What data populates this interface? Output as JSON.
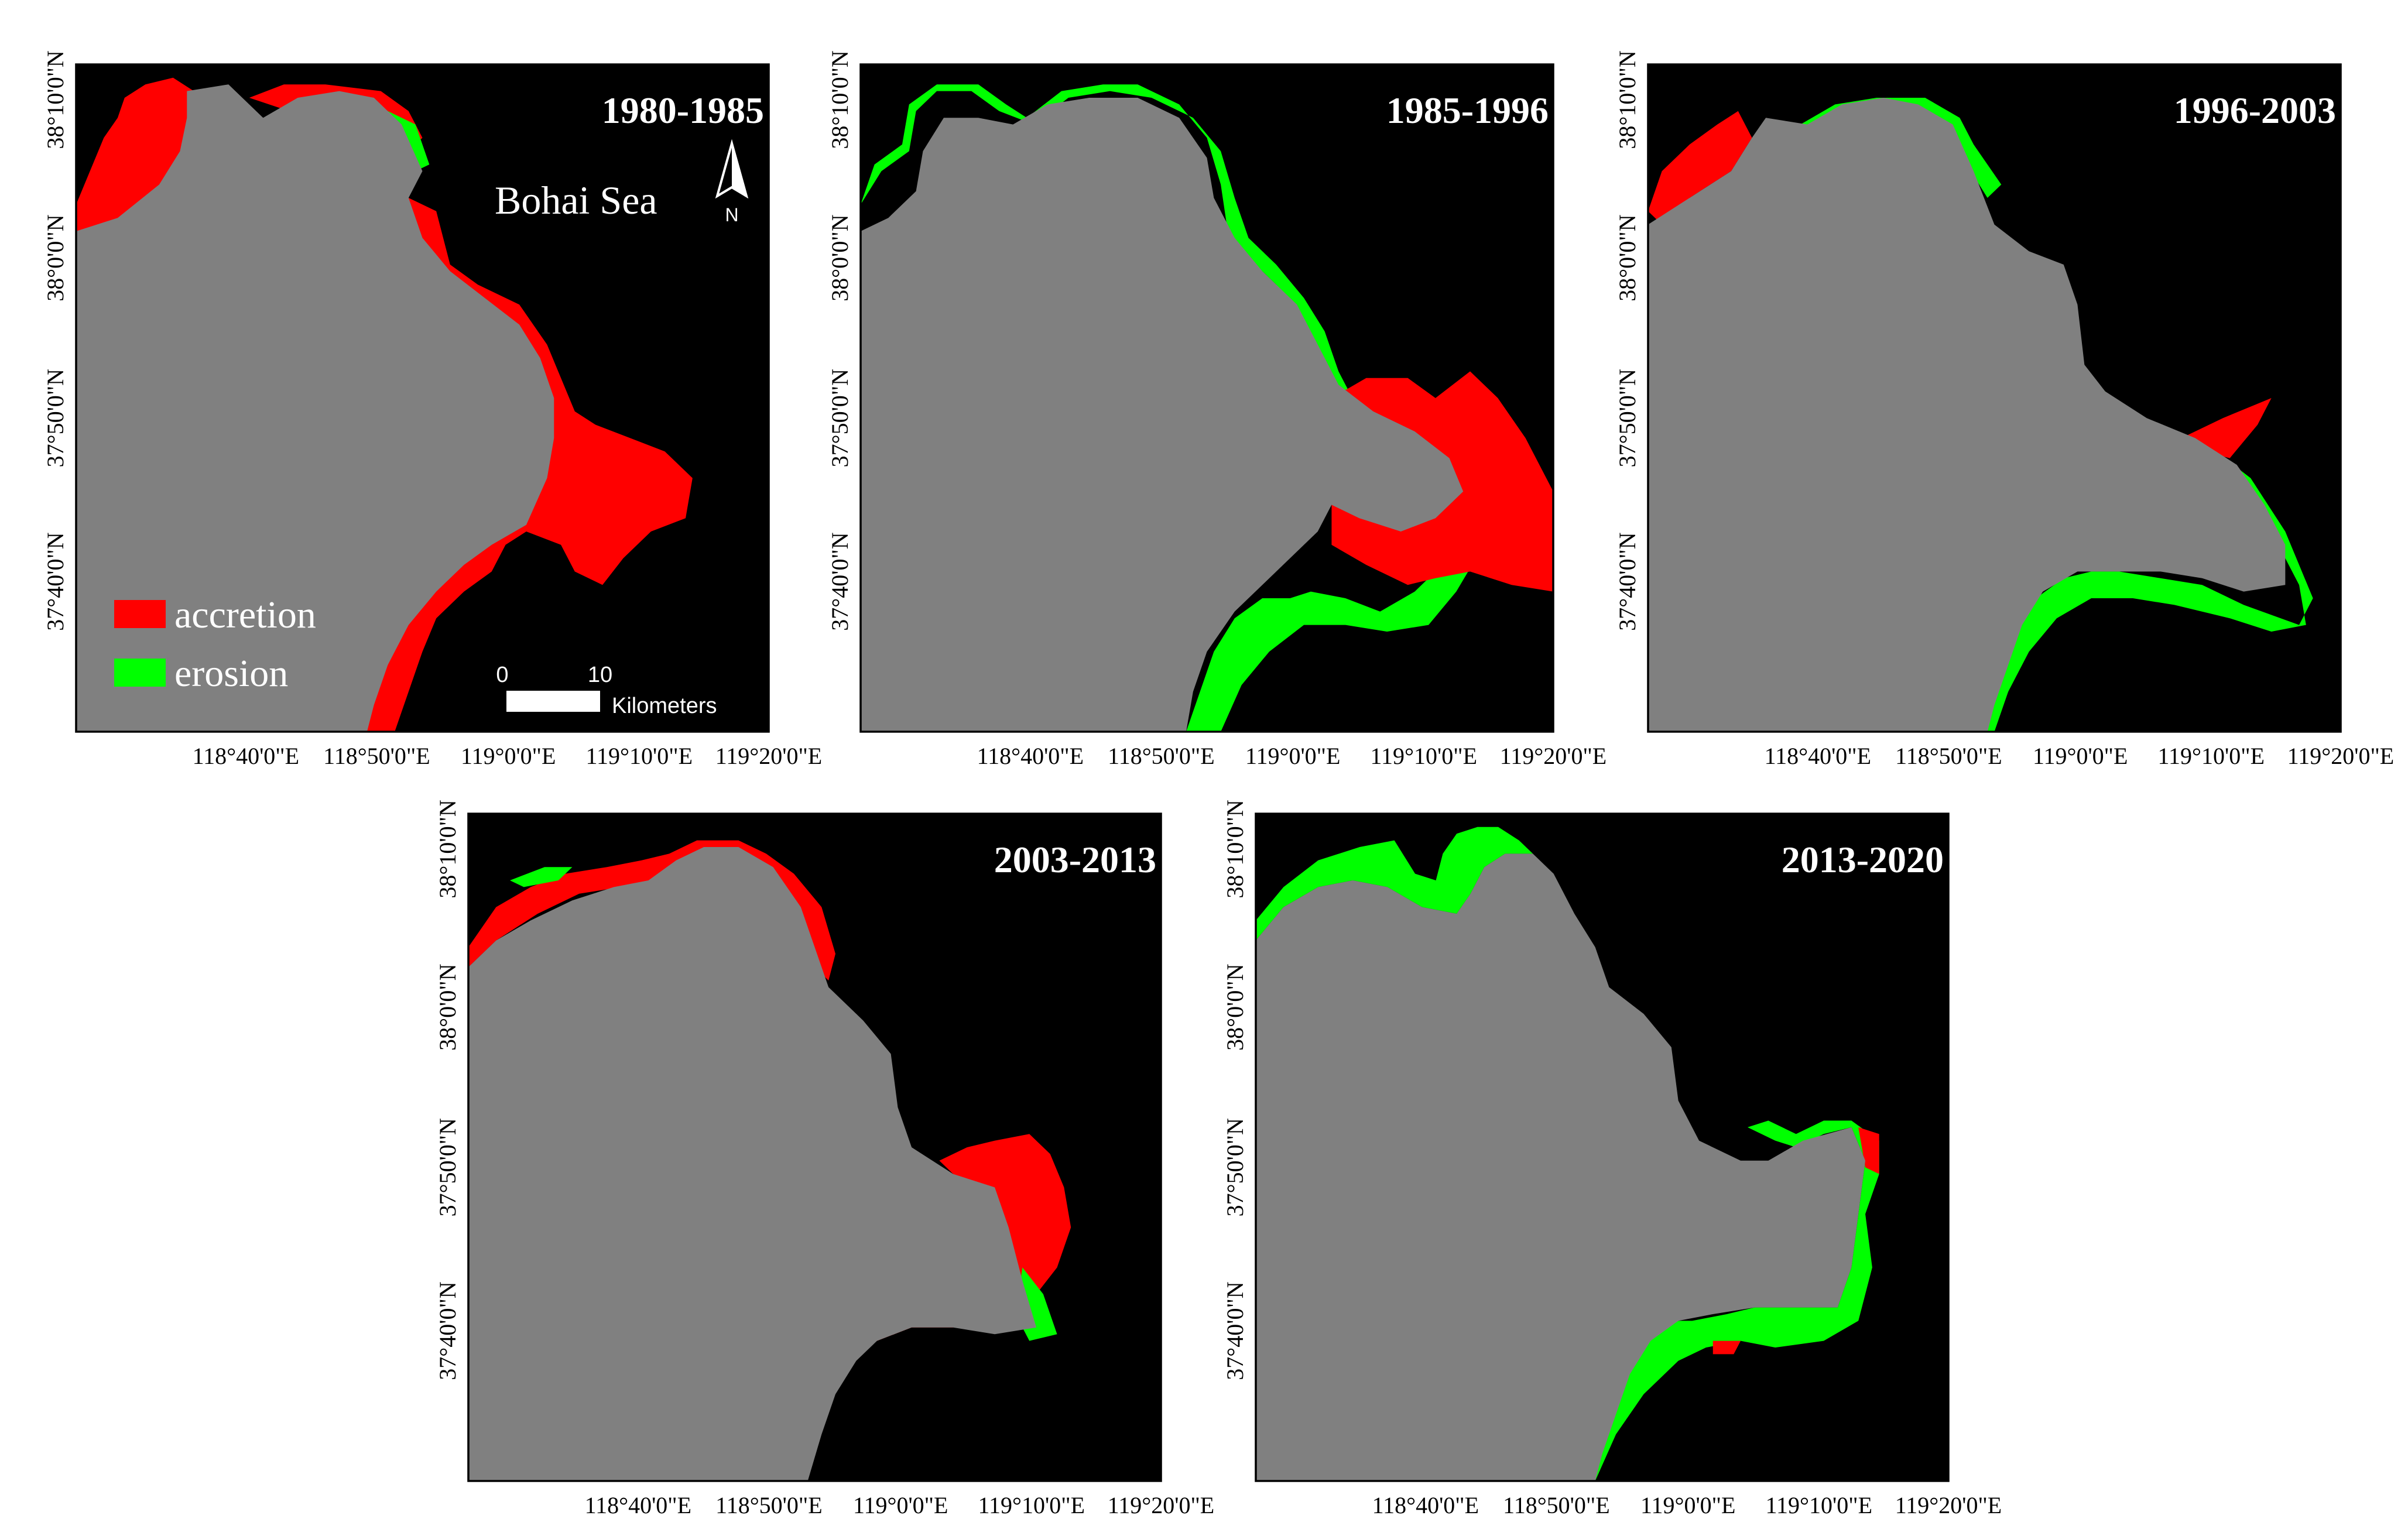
{
  "figure": {
    "colors": {
      "land": "#808080",
      "sea": "#000000",
      "accretion": "#ff0000",
      "erosion": "#00ff00",
      "frame": "#000000",
      "label": "#000000"
    },
    "x_ticks": [
      "118°40'0\"E",
      "118°50'0\"E",
      "119°0'0\"E",
      "119°10'0\"E",
      "119°20'0\"E"
    ],
    "y_ticks": [
      "38°10'0\"N",
      "38°0'0\"N",
      "37°50'0\"N",
      "37°40'0\"N"
    ],
    "legend": {
      "accretion": "accretion",
      "erosion": "erosion"
    },
    "sea_label": "Bohai Sea",
    "north_label": "N",
    "scale": {
      "start": "0",
      "end": "10",
      "unit": "Kilometers"
    },
    "panels": [
      {
        "title": "1980-1985",
        "dominant": "accretion"
      },
      {
        "title": "1985-1996",
        "dominant": "erosion"
      },
      {
        "title": "1996-2003",
        "dominant": "erosion"
      },
      {
        "title": "2003-2013",
        "dominant": "accretion"
      },
      {
        "title": "2013-2020",
        "dominant": "erosion"
      }
    ]
  }
}
